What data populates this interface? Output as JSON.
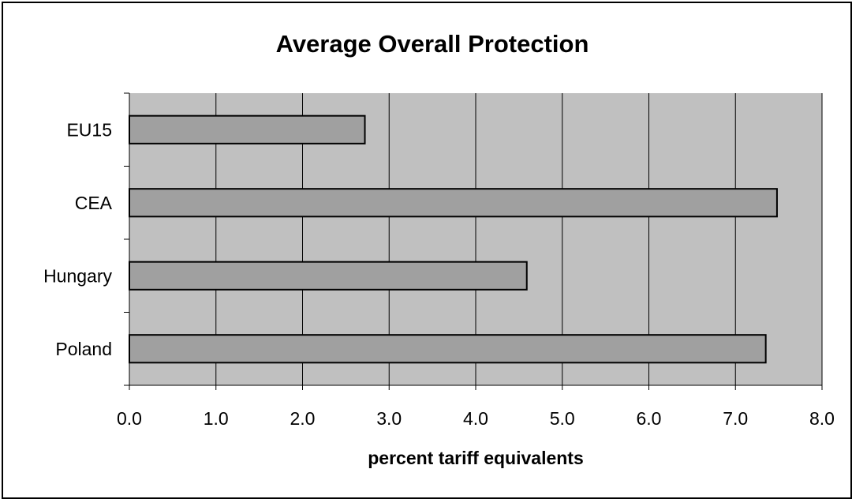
{
  "chart_data": {
    "type": "bar",
    "orientation": "horizontal",
    "title": "Average Overall Protection",
    "xlabel": "percent tariff equivalents",
    "ylabel": "",
    "categories": [
      "EU15",
      "CEA",
      "Hungary",
      "Poland"
    ],
    "values": [
      2.72,
      7.48,
      4.59,
      7.35
    ],
    "xlim": [
      0,
      8
    ],
    "xticks": [
      "0.0",
      "1.0",
      "2.0",
      "3.0",
      "4.0",
      "5.0",
      "6.0",
      "7.0",
      "8.0"
    ],
    "grid": true,
    "legend": "none",
    "colors": {
      "plot_background": "#c0c0c0",
      "bar_fill": "#a0a0a0",
      "bar_stroke": "#000000",
      "gridline": "#000000"
    }
  }
}
